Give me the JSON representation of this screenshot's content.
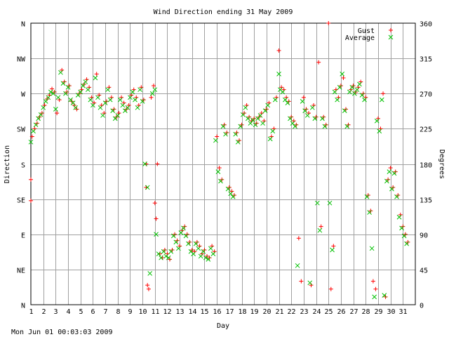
{
  "chart_data": {
    "type": "scatter",
    "title": "Wind Direction ending 31 May 2009",
    "xlabel": "Day",
    "ylabel_left": "Direction",
    "ylabel_right": "Degrees",
    "xlim": [
      1,
      32
    ],
    "ylim": [
      0,
      360
    ],
    "x_ticks": [
      "1",
      "2",
      "3",
      "4",
      "5",
      "6",
      "7",
      "8",
      "9",
      "10",
      "11",
      "12",
      "13",
      "14",
      "15",
      "16",
      "17",
      "18",
      "19",
      "20",
      "21",
      "22",
      "23",
      "24",
      "25",
      "26",
      "27",
      "28",
      "29",
      "30",
      "31"
    ],
    "y_ticks_left": [
      "N",
      "NE",
      "E",
      "SE",
      "S",
      "SW",
      "W",
      "NW",
      "N"
    ],
    "y_ticks_right": [
      "0",
      "45",
      "90",
      "135",
      "180",
      "225",
      "270",
      "315",
      "360"
    ],
    "grid": true,
    "legend_position": "top-right",
    "footer": "Mon Jun 01 00:03:03 2009",
    "colors": {
      "gust": "#ff0000",
      "average": "#00c000",
      "grid": "#a0a0a0"
    },
    "series": [
      {
        "name": "Gust",
        "marker": "+",
        "points": [
          [
            1.0,
            160
          ],
          [
            1.0,
            133
          ],
          [
            1.1,
            215
          ],
          [
            1.3,
            225
          ],
          [
            1.5,
            232
          ],
          [
            1.7,
            240
          ],
          [
            1.9,
            245
          ],
          [
            2.1,
            255
          ],
          [
            2.3,
            263
          ],
          [
            2.5,
            268
          ],
          [
            2.7,
            276
          ],
          [
            2.9,
            272
          ],
          [
            3.1,
            245
          ],
          [
            3.3,
            262
          ],
          [
            3.5,
            300
          ],
          [
            3.7,
            285
          ],
          [
            3.9,
            272
          ],
          [
            4.1,
            280
          ],
          [
            4.3,
            260
          ],
          [
            4.5,
            255
          ],
          [
            4.7,
            250
          ],
          [
            4.9,
            270
          ],
          [
            5.1,
            275
          ],
          [
            5.3,
            282
          ],
          [
            5.5,
            288
          ],
          [
            5.7,
            278
          ],
          [
            5.9,
            265
          ],
          [
            6.1,
            258
          ],
          [
            6.3,
            295
          ],
          [
            6.5,
            268
          ],
          [
            6.7,
            255
          ],
          [
            6.9,
            245
          ],
          [
            7.1,
            260
          ],
          [
            7.3,
            278
          ],
          [
            7.5,
            265
          ],
          [
            7.7,
            250
          ],
          [
            7.9,
            240
          ],
          [
            8.1,
            245
          ],
          [
            8.3,
            265
          ],
          [
            8.5,
            258
          ],
          [
            8.7,
            250
          ],
          [
            8.9,
            255
          ],
          [
            9.1,
            268
          ],
          [
            9.3,
            275
          ],
          [
            9.5,
            265
          ],
          [
            9.7,
            255
          ],
          [
            9.9,
            278
          ],
          [
            10.1,
            262
          ],
          [
            10.3,
            180
          ],
          [
            10.3,
            150
          ],
          [
            10.4,
            25
          ],
          [
            10.5,
            20
          ],
          [
            10.7,
            265
          ],
          [
            10.9,
            280
          ],
          [
            11.0,
            130
          ],
          [
            11.1,
            110
          ],
          [
            11.2,
            180
          ],
          [
            11.4,
            65
          ],
          [
            11.6,
            60
          ],
          [
            11.8,
            70
          ],
          [
            12.0,
            65
          ],
          [
            12.2,
            58
          ],
          [
            12.4,
            70
          ],
          [
            12.6,
            90
          ],
          [
            12.8,
            82
          ],
          [
            13.0,
            75
          ],
          [
            13.2,
            95
          ],
          [
            13.4,
            100
          ],
          [
            13.6,
            90
          ],
          [
            13.8,
            80
          ],
          [
            14.0,
            70
          ],
          [
            14.2,
            68
          ],
          [
            14.4,
            80
          ],
          [
            14.6,
            75
          ],
          [
            14.8,
            65
          ],
          [
            15.0,
            70
          ],
          [
            15.2,
            62
          ],
          [
            15.4,
            60
          ],
          [
            15.6,
            75
          ],
          [
            15.8,
            68
          ],
          [
            16.0,
            215
          ],
          [
            16.2,
            175
          ],
          [
            16.4,
            160
          ],
          [
            16.6,
            230
          ],
          [
            16.8,
            220
          ],
          [
            17.0,
            150
          ],
          [
            17.2,
            145
          ],
          [
            17.4,
            140
          ],
          [
            17.6,
            220
          ],
          [
            17.8,
            210
          ],
          [
            18.0,
            230
          ],
          [
            18.2,
            245
          ],
          [
            18.4,
            255
          ],
          [
            18.6,
            240
          ],
          [
            18.8,
            235
          ],
          [
            19.0,
            238
          ],
          [
            19.2,
            232
          ],
          [
            19.4,
            240
          ],
          [
            19.6,
            245
          ],
          [
            19.8,
            235
          ],
          [
            20.0,
            250
          ],
          [
            20.2,
            258
          ],
          [
            20.4,
            215
          ],
          [
            20.6,
            225
          ],
          [
            20.8,
            265
          ],
          [
            21.0,
            325
          ],
          [
            21.2,
            278
          ],
          [
            21.4,
            275
          ],
          [
            21.6,
            265
          ],
          [
            21.8,
            260
          ],
          [
            22.0,
            240
          ],
          [
            22.2,
            235
          ],
          [
            22.4,
            230
          ],
          [
            22.6,
            85
          ],
          [
            22.8,
            30
          ],
          [
            23.0,
            265
          ],
          [
            23.2,
            250
          ],
          [
            23.4,
            245
          ],
          [
            23.6,
            25
          ],
          [
            23.8,
            255
          ],
          [
            24.0,
            240
          ],
          [
            24.2,
            310
          ],
          [
            24.4,
            100
          ],
          [
            24.6,
            240
          ],
          [
            24.8,
            230
          ],
          [
            25.0,
            360
          ],
          [
            25.2,
            20
          ],
          [
            25.4,
            75
          ],
          [
            25.6,
            275
          ],
          [
            25.8,
            265
          ],
          [
            26.0,
            280
          ],
          [
            26.2,
            290
          ],
          [
            26.4,
            250
          ],
          [
            26.6,
            230
          ],
          [
            26.8,
            275
          ],
          [
            27.0,
            280
          ],
          [
            27.2,
            272
          ],
          [
            27.4,
            278
          ],
          [
            27.6,
            285
          ],
          [
            27.8,
            270
          ],
          [
            28.0,
            265
          ],
          [
            28.2,
            140
          ],
          [
            28.4,
            120
          ],
          [
            28.6,
            30
          ],
          [
            28.8,
            20
          ],
          [
            29.0,
            238
          ],
          [
            29.2,
            225
          ],
          [
            29.4,
            270
          ],
          [
            29.6,
            10
          ],
          [
            29.8,
            160
          ],
          [
            30.0,
            175
          ],
          [
            30.2,
            150
          ],
          [
            30.4,
            170
          ],
          [
            30.6,
            140
          ],
          [
            30.8,
            115
          ],
          [
            31.0,
            100
          ],
          [
            31.2,
            90
          ],
          [
            31.4,
            80
          ]
        ]
      },
      {
        "name": "Average",
        "marker": "x",
        "points": [
          [
            1.0,
            208
          ],
          [
            1.2,
            222
          ],
          [
            1.4,
            230
          ],
          [
            1.6,
            238
          ],
          [
            1.8,
            243
          ],
          [
            2.0,
            252
          ],
          [
            2.2,
            260
          ],
          [
            2.4,
            265
          ],
          [
            2.6,
            272
          ],
          [
            2.8,
            270
          ],
          [
            3.0,
            250
          ],
          [
            3.2,
            265
          ],
          [
            3.4,
            297
          ],
          [
            3.6,
            283
          ],
          [
            3.8,
            270
          ],
          [
            4.0,
            278
          ],
          [
            4.2,
            262
          ],
          [
            4.4,
            258
          ],
          [
            4.6,
            252
          ],
          [
            4.8,
            268
          ],
          [
            5.0,
            272
          ],
          [
            5.2,
            280
          ],
          [
            5.4,
            285
          ],
          [
            5.6,
            275
          ],
          [
            5.8,
            262
          ],
          [
            6.0,
            255
          ],
          [
            6.2,
            290
          ],
          [
            6.4,
            265
          ],
          [
            6.6,
            252
          ],
          [
            6.8,
            242
          ],
          [
            7.0,
            258
          ],
          [
            7.2,
            275
          ],
          [
            7.4,
            262
          ],
          [
            7.6,
            248
          ],
          [
            7.8,
            238
          ],
          [
            8.0,
            242
          ],
          [
            8.2,
            262
          ],
          [
            8.4,
            255
          ],
          [
            8.6,
            248
          ],
          [
            8.8,
            252
          ],
          [
            9.0,
            265
          ],
          [
            9.2,
            272
          ],
          [
            9.4,
            262
          ],
          [
            9.6,
            252
          ],
          [
            9.8,
            275
          ],
          [
            10.0,
            260
          ],
          [
            10.2,
            180
          ],
          [
            10.4,
            150
          ],
          [
            10.6,
            40
          ],
          [
            10.8,
            270
          ],
          [
            11.0,
            275
          ],
          [
            11.1,
            90
          ],
          [
            11.3,
            65
          ],
          [
            11.5,
            60
          ],
          [
            11.7,
            68
          ],
          [
            11.9,
            62
          ],
          [
            12.1,
            60
          ],
          [
            12.3,
            68
          ],
          [
            12.5,
            88
          ],
          [
            12.7,
            80
          ],
          [
            12.9,
            72
          ],
          [
            13.1,
            92
          ],
          [
            13.3,
            98
          ],
          [
            13.5,
            88
          ],
          [
            13.7,
            78
          ],
          [
            13.9,
            68
          ],
          [
            14.1,
            65
          ],
          [
            14.3,
            78
          ],
          [
            14.5,
            72
          ],
          [
            14.7,
            62
          ],
          [
            14.9,
            68
          ],
          [
            15.1,
            60
          ],
          [
            15.3,
            58
          ],
          [
            15.5,
            72
          ],
          [
            15.7,
            65
          ],
          [
            15.9,
            210
          ],
          [
            16.1,
            170
          ],
          [
            16.3,
            158
          ],
          [
            16.5,
            228
          ],
          [
            16.7,
            218
          ],
          [
            16.9,
            148
          ],
          [
            17.1,
            142
          ],
          [
            17.3,
            138
          ],
          [
            17.5,
            218
          ],
          [
            17.7,
            208
          ],
          [
            17.9,
            228
          ],
          [
            18.1,
            243
          ],
          [
            18.3,
            252
          ],
          [
            18.5,
            238
          ],
          [
            18.7,
            232
          ],
          [
            18.9,
            236
          ],
          [
            19.1,
            230
          ],
          [
            19.3,
            238
          ],
          [
            19.5,
            242
          ],
          [
            19.7,
            232
          ],
          [
            19.9,
            248
          ],
          [
            20.1,
            255
          ],
          [
            20.3,
            212
          ],
          [
            20.5,
            222
          ],
          [
            20.7,
            262
          ],
          [
            21.0,
            295
          ],
          [
            21.1,
            275
          ],
          [
            21.3,
            272
          ],
          [
            21.5,
            262
          ],
          [
            21.7,
            258
          ],
          [
            21.9,
            238
          ],
          [
            22.1,
            232
          ],
          [
            22.3,
            228
          ],
          [
            22.5,
            50
          ],
          [
            22.9,
            260
          ],
          [
            23.1,
            248
          ],
          [
            23.3,
            242
          ],
          [
            23.5,
            28
          ],
          [
            23.7,
            252
          ],
          [
            23.9,
            238
          ],
          [
            24.1,
            130
          ],
          [
            24.3,
            95
          ],
          [
            24.5,
            238
          ],
          [
            24.7,
            228
          ],
          [
            25.1,
            130
          ],
          [
            25.3,
            70
          ],
          [
            25.5,
            272
          ],
          [
            25.7,
            262
          ],
          [
            25.9,
            278
          ],
          [
            26.1,
            295
          ],
          [
            26.3,
            248
          ],
          [
            26.5,
            228
          ],
          [
            26.7,
            272
          ],
          [
            26.9,
            278
          ],
          [
            27.1,
            270
          ],
          [
            27.3,
            275
          ],
          [
            27.5,
            282
          ],
          [
            27.7,
            268
          ],
          [
            27.9,
            262
          ],
          [
            28.1,
            138
          ],
          [
            28.3,
            118
          ],
          [
            28.5,
            72
          ],
          [
            28.7,
            10
          ],
          [
            28.9,
            235
          ],
          [
            29.1,
            222
          ],
          [
            29.3,
            262
          ],
          [
            29.5,
            12
          ],
          [
            29.7,
            158
          ],
          [
            29.9,
            170
          ],
          [
            30.1,
            148
          ],
          [
            30.3,
            168
          ],
          [
            30.5,
            138
          ],
          [
            30.7,
            112
          ],
          [
            30.9,
            98
          ],
          [
            31.1,
            88
          ],
          [
            31.3,
            78
          ]
        ]
      }
    ]
  }
}
